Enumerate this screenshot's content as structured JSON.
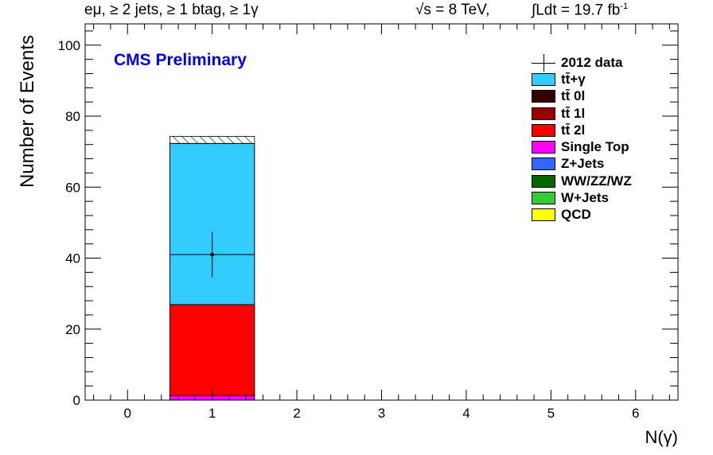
{
  "header": {
    "selection": "eμ, ≥ 2 jets, ≥ 1 btag, ≥ 1γ",
    "energy": "√s = 8 TeV,",
    "lumi": "∫Ldt = 19.7 fb",
    "lumi_exp": "-1"
  },
  "experiment_label": "CMS Preliminary",
  "chart_data": {
    "type": "bar",
    "stacked": true,
    "xlabel": "N(γ)",
    "ylabel": "Number of Events",
    "xlim": [
      -0.5,
      6.5
    ],
    "ylim": [
      0,
      106
    ],
    "x_ticks": [
      "0",
      "1",
      "2",
      "3",
      "4",
      "5",
      "6"
    ],
    "y_ticks": [
      "0",
      "20",
      "40",
      "60",
      "80",
      "100"
    ],
    "grid": false,
    "legend_position": "top-right",
    "bins": [
      1
    ],
    "series": [
      {
        "name": "QCD",
        "values": [
          0.0
        ],
        "color": "#ffff00"
      },
      {
        "name": "W+Jets",
        "values": [
          0.0
        ],
        "color": "#33cc33"
      },
      {
        "name": "WW/ZZ/WZ",
        "values": [
          0.0
        ],
        "color": "#006600"
      },
      {
        "name": "Z+Jets",
        "values": [
          0.0
        ],
        "color": "#3366ff"
      },
      {
        "name": "Single Top",
        "values": [
          1.3
        ],
        "color": "#ff00ff"
      },
      {
        "name": "tt̄ 2l",
        "values": [
          25.6
        ],
        "color": "#ff0000"
      },
      {
        "name": "tt̄ 1l",
        "values": [
          0.0
        ],
        "color": "#990000"
      },
      {
        "name": "tt̄ 0l",
        "values": [
          0.0
        ],
        "color": "#330000"
      },
      {
        "name": "tt̄+γ",
        "values": [
          45.4
        ],
        "color": "#33ccff"
      }
    ],
    "uncertainty_band": {
      "bin": 1,
      "low": 72.3,
      "high": 74.3
    },
    "data": {
      "name": "2012 data",
      "x": [
        1
      ],
      "y": [
        41
      ],
      "yerr": [
        6.4
      ],
      "xerr": [
        0.5
      ]
    }
  },
  "legend": [
    {
      "label": "2012 data",
      "key": "data",
      "color": "#000000"
    },
    {
      "label": "tt̄+γ",
      "key": "box",
      "color": "#33ccff"
    },
    {
      "label": "tt̄ 0l",
      "key": "box",
      "color": "#330000"
    },
    {
      "label": "tt̄ 1l",
      "key": "box",
      "color": "#990000"
    },
    {
      "label": "tt̄ 2l",
      "key": "box",
      "color": "#ff0000"
    },
    {
      "label": "Single Top",
      "key": "box",
      "color": "#ff00ff"
    },
    {
      "label": "Z+Jets",
      "key": "box",
      "color": "#3366ff"
    },
    {
      "label": "WW/ZZ/WZ",
      "key": "box",
      "color": "#006600"
    },
    {
      "label": "W+Jets",
      "key": "box",
      "color": "#33cc33"
    },
    {
      "label": "QCD",
      "key": "box",
      "color": "#ffff00"
    }
  ]
}
